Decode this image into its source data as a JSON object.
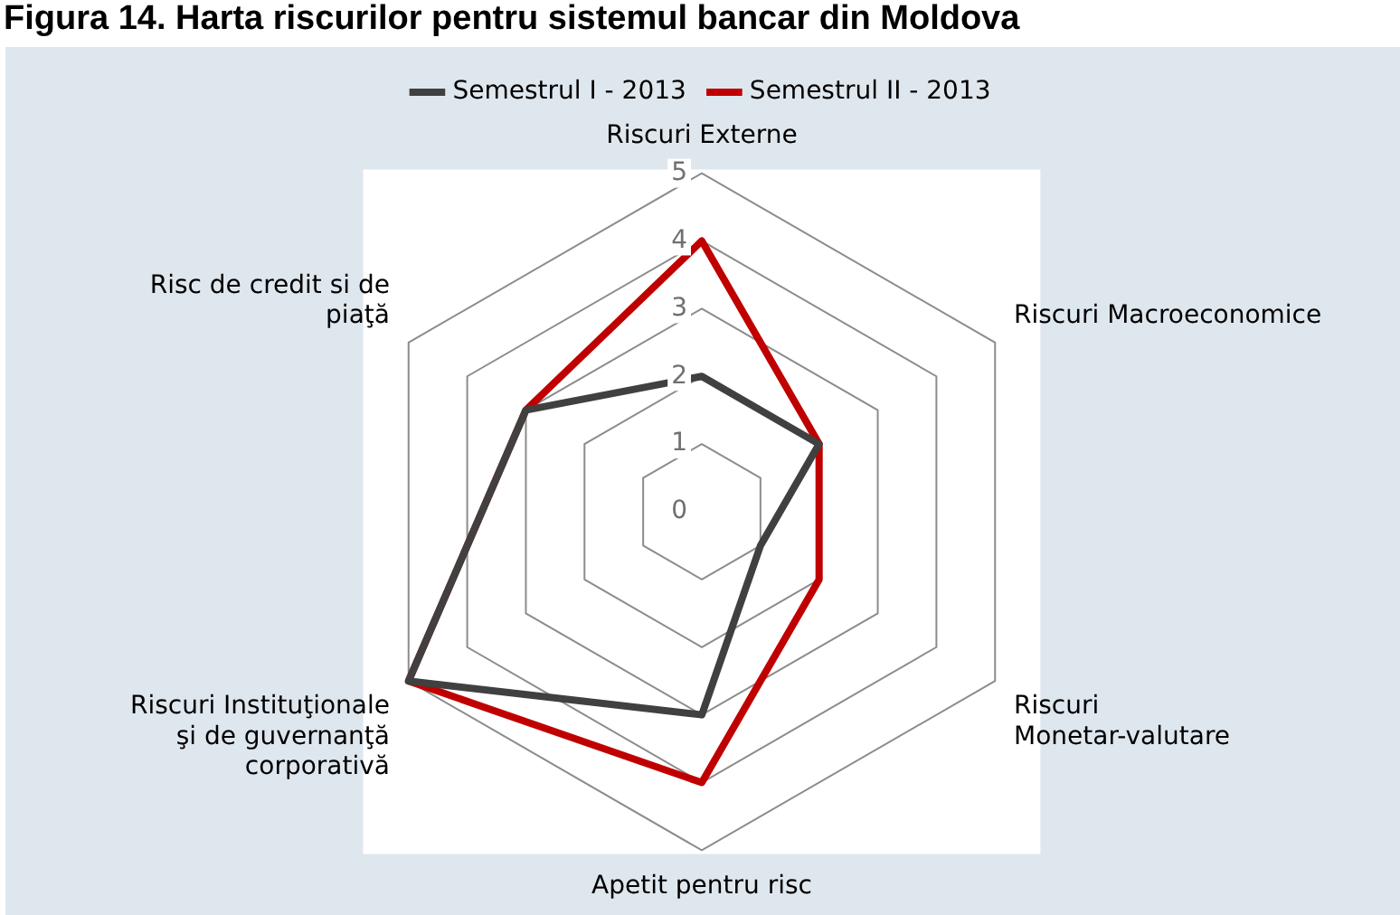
{
  "chart_data": {
    "type": "radar",
    "title": "Figura 14. Harta riscurilor pentru sistemul bancar din Moldova",
    "categories": [
      "Riscuri Externe",
      "Riscuri Macroeconomice",
      "Riscuri Monetar-valutare",
      "Apetit pentru risc",
      "Riscuri Instituţionale şi de guvernanţă corporativă",
      "Risc de credit si de piaţă"
    ],
    "series": [
      {
        "name": "Semestrul I - 2013",
        "color": "#404040",
        "values": [
          2,
          2,
          1,
          3,
          5,
          3
        ]
      },
      {
        "name": "Semestrul II - 2013",
        "color": "#c00000",
        "values": [
          4,
          2,
          2,
          4,
          5,
          3
        ]
      }
    ],
    "ylim": [
      0,
      5
    ],
    "yticks": [
      0,
      1,
      2,
      3,
      4,
      5
    ],
    "grid": true,
    "legend": "top",
    "marker": "none",
    "line_style": "solid"
  }
}
